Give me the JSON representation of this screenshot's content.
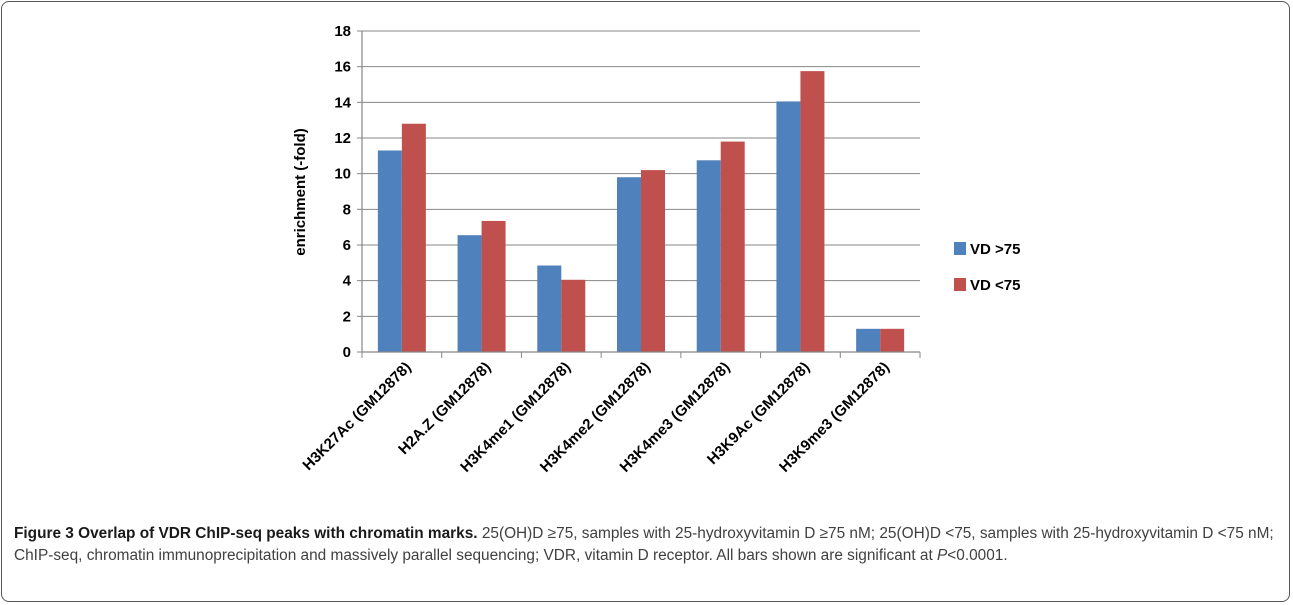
{
  "chart_data": {
    "type": "bar",
    "ylabel": "enrichment (-fold)",
    "ylim": [
      0,
      18
    ],
    "yticks": [
      0,
      2,
      4,
      6,
      8,
      10,
      12,
      14,
      16,
      18
    ],
    "grid": true,
    "legend_position": "right",
    "categories": [
      "H3K27Ac (GM12878)",
      "H2A.Z (GM12878)",
      "H3K4me1 (GM12878)",
      "H3K4me2 (GM12878)",
      "H3K4me3 (GM12878)",
      "H3K9Ac (GM12878)",
      "H3K9me3 (GM12878)"
    ],
    "series": [
      {
        "name": "VD >75",
        "color": "#4f81bd",
        "values": [
          11.3,
          6.55,
          4.85,
          9.8,
          10.75,
          14.05,
          1.3
        ]
      },
      {
        "name": "VD <75",
        "color": "#c0504d",
        "values": [
          12.8,
          7.35,
          4.05,
          10.2,
          11.8,
          15.75,
          1.3
        ]
      }
    ]
  },
  "caption": {
    "title": "Figure 3 Overlap of VDR ChIP-seq peaks with chromatin marks.",
    "body": " 25(OH)D ≥75, samples with 25-hydroxyvitamin D ≥75 nM; 25(OH)D <75, samples with 25-hydroxyvitamin D <75 nM; ChIP-seq, chromatin immunoprecipitation and massively parallel sequencing; VDR, vitamin D receptor. All bars shown are significant at ",
    "p_italic": "P",
    "p_tail": "<0.0001."
  }
}
